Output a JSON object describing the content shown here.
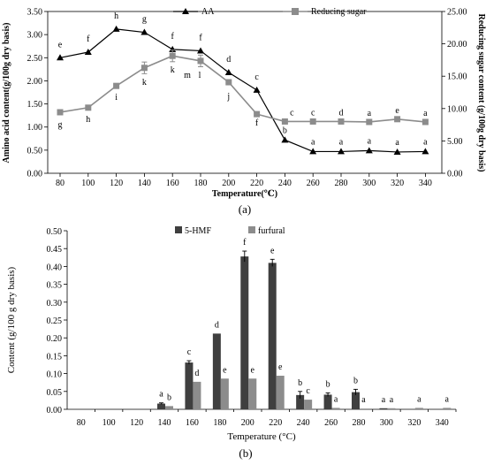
{
  "chart_data": [
    {
      "type": "line",
      "panel_label": "(a)",
      "xlabel": "Temperature(℃)",
      "ylabel": "Amino acid content(g/100g dry basis)",
      "y2label": "Reducing sugar content (g/100g dry basis)",
      "x": [
        80,
        100,
        120,
        140,
        160,
        180,
        200,
        220,
        240,
        260,
        280,
        300,
        320,
        340
      ],
      "ylim": [
        0,
        3.5
      ],
      "y2lim": [
        0,
        25
      ],
      "yticks": [
        "0.00",
        "0.50",
        "1.00",
        "1.50",
        "2.00",
        "2.50",
        "3.00",
        "3.50"
      ],
      "y2ticks": [
        "0.00",
        "5.00",
        "10.00",
        "15.00",
        "20.00",
        "25.00"
      ],
      "legend_position": "top-right",
      "series": [
        {
          "name": "AA",
          "axis": "left",
          "marker": "triangle",
          "color": "#000000",
          "values": [
            2.5,
            2.62,
            3.12,
            3.05,
            2.68,
            2.65,
            2.18,
            1.8,
            0.72,
            0.47,
            0.47,
            0.49,
            0.46,
            0.47
          ],
          "letters": [
            "e",
            "f",
            "h",
            "g",
            "f",
            "f",
            "d",
            "c",
            "b",
            "a",
            "a",
            "a",
            "a",
            "a"
          ]
        },
        {
          "name": "Reducing sugar",
          "axis": "right",
          "marker": "square",
          "color": "#8c8c8c",
          "values": [
            9.43,
            10.14,
            13.5,
            16.29,
            18.14,
            17.36,
            14.07,
            9.14,
            8.0,
            8.0,
            8.0,
            7.93,
            8.36,
            7.93
          ],
          "errors": [
            0,
            0,
            0,
            0.9,
            0.9,
            0.9,
            0,
            0,
            0,
            0,
            0,
            0,
            0,
            0
          ],
          "letters": [
            "g",
            "h",
            "i",
            "k",
            "k",
            "l",
            "j",
            "f",
            "c",
            "c",
            "d",
            "a",
            "e",
            "a"
          ],
          "extra_letters": [
            {
              "index": 5,
              "text": "m"
            }
          ]
        }
      ]
    },
    {
      "type": "bar",
      "panel_label": "(b)",
      "xlabel": "Temperature (°C)",
      "ylabel": "Content (g/100 g dry basis)",
      "categories": [
        "80",
        "100",
        "120",
        "140",
        "160",
        "180",
        "200",
        "220",
        "240",
        "260",
        "280",
        "300",
        "320",
        "340"
      ],
      "ylim": [
        0,
        0.5
      ],
      "yticks": [
        "0.00",
        "0.05",
        "0.10",
        "0.15",
        "0.20",
        "0.25",
        "0.30",
        "0.35",
        "0.40",
        "0.45",
        "0.50"
      ],
      "legend_position": "top-center",
      "series": [
        {
          "name": "5-HMF",
          "color": "#3f3f3f",
          "values": [
            0,
            0,
            0,
            0.016,
            0.131,
            0.212,
            0.428,
            0.41,
            0.04,
            0.041,
            0.048,
            0.003,
            0,
            0
          ],
          "errors": [
            0,
            0,
            0,
            0.002,
            0.005,
            0,
            0.015,
            0.01,
            0.01,
            0.005,
            0.008,
            0,
            0,
            0
          ],
          "letters": [
            "",
            "",
            "",
            "a",
            "c",
            "d",
            "f",
            "e",
            "b",
            "b",
            "b",
            "a",
            "",
            ""
          ]
        },
        {
          "name": "furfural",
          "color": "#8c8c8c",
          "values": [
            0,
            0,
            0,
            0.009,
            0.077,
            0.086,
            0.086,
            0.094,
            0.027,
            0.004,
            0.002,
            0.003,
            0.004,
            0.004
          ],
          "errors": [
            0,
            0,
            0,
            0,
            0,
            0,
            0,
            0,
            0,
            0,
            0,
            0,
            0,
            0
          ],
          "letters": [
            "",
            "",
            "",
            "b",
            "d",
            "e",
            "e",
            "e",
            "c",
            "a",
            "a",
            "a",
            "a",
            "a"
          ]
        }
      ]
    }
  ]
}
